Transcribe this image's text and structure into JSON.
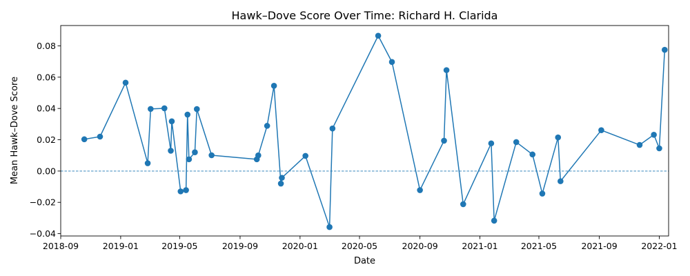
{
  "chart_data": {
    "type": "line",
    "title": "Hawk–Dove Score Over Time: Richard H. Clarida",
    "xlabel": "Date",
    "ylabel": "Mean Hawk–Dove Score",
    "xlim": [
      "2018-09-01",
      "2022-01-20"
    ],
    "ylim": [
      -0.0415,
      0.093
    ],
    "grid": false,
    "reference_line": {
      "y": 0,
      "style": "dashed"
    },
    "colors": {
      "series": "#1f77b4"
    },
    "x_ticks": [
      {
        "value": "2018-09-01",
        "label": "2018-09"
      },
      {
        "value": "2019-01-01",
        "label": "2019-01"
      },
      {
        "value": "2019-05-01",
        "label": "2019-05"
      },
      {
        "value": "2019-09-01",
        "label": "2019-09"
      },
      {
        "value": "2020-01-01",
        "label": "2020-01"
      },
      {
        "value": "2020-05-01",
        "label": "2020-05"
      },
      {
        "value": "2020-09-01",
        "label": "2020-09"
      },
      {
        "value": "2021-01-01",
        "label": "2021-01"
      },
      {
        "value": "2021-05-01",
        "label": "2021-05"
      },
      {
        "value": "2021-09-01",
        "label": "2021-09"
      },
      {
        "value": "2022-01-01",
        "label": "2022-01"
      }
    ],
    "y_ticks": [
      {
        "value": -0.04,
        "label": "−0.04"
      },
      {
        "value": -0.02,
        "label": "−0.02"
      },
      {
        "value": 0.0,
        "label": "0.00"
      },
      {
        "value": 0.02,
        "label": "0.02"
      },
      {
        "value": 0.04,
        "label": "0.04"
      },
      {
        "value": 0.06,
        "label": "0.06"
      },
      {
        "value": 0.08,
        "label": "0.08"
      }
    ],
    "series": [
      {
        "points": [
          {
            "x": "2018-10-19",
            "y": 0.0203
          },
          {
            "x": "2018-11-20",
            "y": 0.022
          },
          {
            "x": "2019-01-11",
            "y": 0.0565
          },
          {
            "x": "2019-02-25",
            "y": 0.005
          },
          {
            "x": "2019-03-03",
            "y": 0.0397
          },
          {
            "x": "2019-03-31",
            "y": 0.0401
          },
          {
            "x": "2019-04-13",
            "y": 0.013
          },
          {
            "x": "2019-04-15",
            "y": 0.0318
          },
          {
            "x": "2019-05-03",
            "y": -0.013
          },
          {
            "x": "2019-05-14",
            "y": -0.0122
          },
          {
            "x": "2019-05-17",
            "y": 0.0361
          },
          {
            "x": "2019-05-20",
            "y": 0.0075
          },
          {
            "x": "2019-06-01",
            "y": 0.012
          },
          {
            "x": "2019-06-05",
            "y": 0.0396
          },
          {
            "x": "2019-07-05",
            "y": 0.0101
          },
          {
            "x": "2019-10-05",
            "y": 0.0075
          },
          {
            "x": "2019-10-08",
            "y": 0.01
          },
          {
            "x": "2019-10-26",
            "y": 0.0289
          },
          {
            "x": "2019-11-09",
            "y": 0.0545
          },
          {
            "x": "2019-11-23",
            "y": -0.008
          },
          {
            "x": "2019-11-25",
            "y": -0.0043
          },
          {
            "x": "2020-01-12",
            "y": 0.0097
          },
          {
            "x": "2020-03-01",
            "y": -0.0358
          },
          {
            "x": "2020-03-07",
            "y": 0.0272
          },
          {
            "x": "2020-06-08",
            "y": 0.0865
          },
          {
            "x": "2020-07-06",
            "y": 0.0697
          },
          {
            "x": "2020-09-01",
            "y": -0.0122
          },
          {
            "x": "2020-10-20",
            "y": 0.0194
          },
          {
            "x": "2020-10-25",
            "y": 0.0645
          },
          {
            "x": "2020-11-28",
            "y": -0.0212
          },
          {
            "x": "2021-01-24",
            "y": 0.0177
          },
          {
            "x": "2021-01-30",
            "y": -0.0317
          },
          {
            "x": "2021-03-16",
            "y": 0.0185
          },
          {
            "x": "2021-04-18",
            "y": 0.0106
          },
          {
            "x": "2021-05-08",
            "y": -0.0144
          },
          {
            "x": "2021-06-09",
            "y": 0.0215
          },
          {
            "x": "2021-06-14",
            "y": -0.0065
          },
          {
            "x": "2021-09-05",
            "y": 0.0261
          },
          {
            "x": "2021-11-22",
            "y": 0.0167
          },
          {
            "x": "2021-12-21",
            "y": 0.0232
          },
          {
            "x": "2022-01-01",
            "y": 0.0145
          },
          {
            "x": "2022-01-12",
            "y": 0.0775
          }
        ]
      }
    ]
  }
}
